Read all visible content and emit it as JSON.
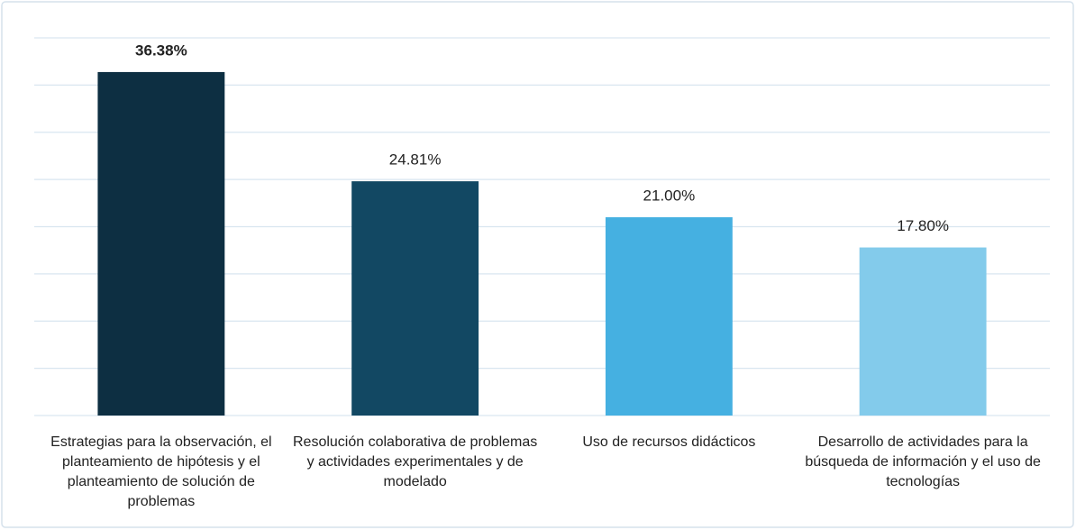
{
  "chart_data": {
    "type": "bar",
    "categories": [
      "Estrategias para la observación, el planteamiento de hipótesis y el planteamiento de solución de problemas",
      "Resolución colaborativa de problemas y actividades experimentales y de modelado",
      "Uso de recursos didácticos",
      "Desarrollo de actividades para la búsqueda de información y el uso de tecnologías"
    ],
    "values": [
      36.38,
      24.81,
      21.0,
      17.8
    ],
    "value_labels": [
      "36.38%",
      "24.81%",
      "21.00%",
      "17.80%"
    ],
    "colors": [
      "#0d2f42",
      "#124863",
      "#45b0e1",
      "#83cbeb"
    ],
    "ylim": [
      0,
      40
    ],
    "yticks": [
      0,
      5,
      10,
      15,
      20,
      25,
      30,
      35,
      40
    ],
    "grid": true
  }
}
